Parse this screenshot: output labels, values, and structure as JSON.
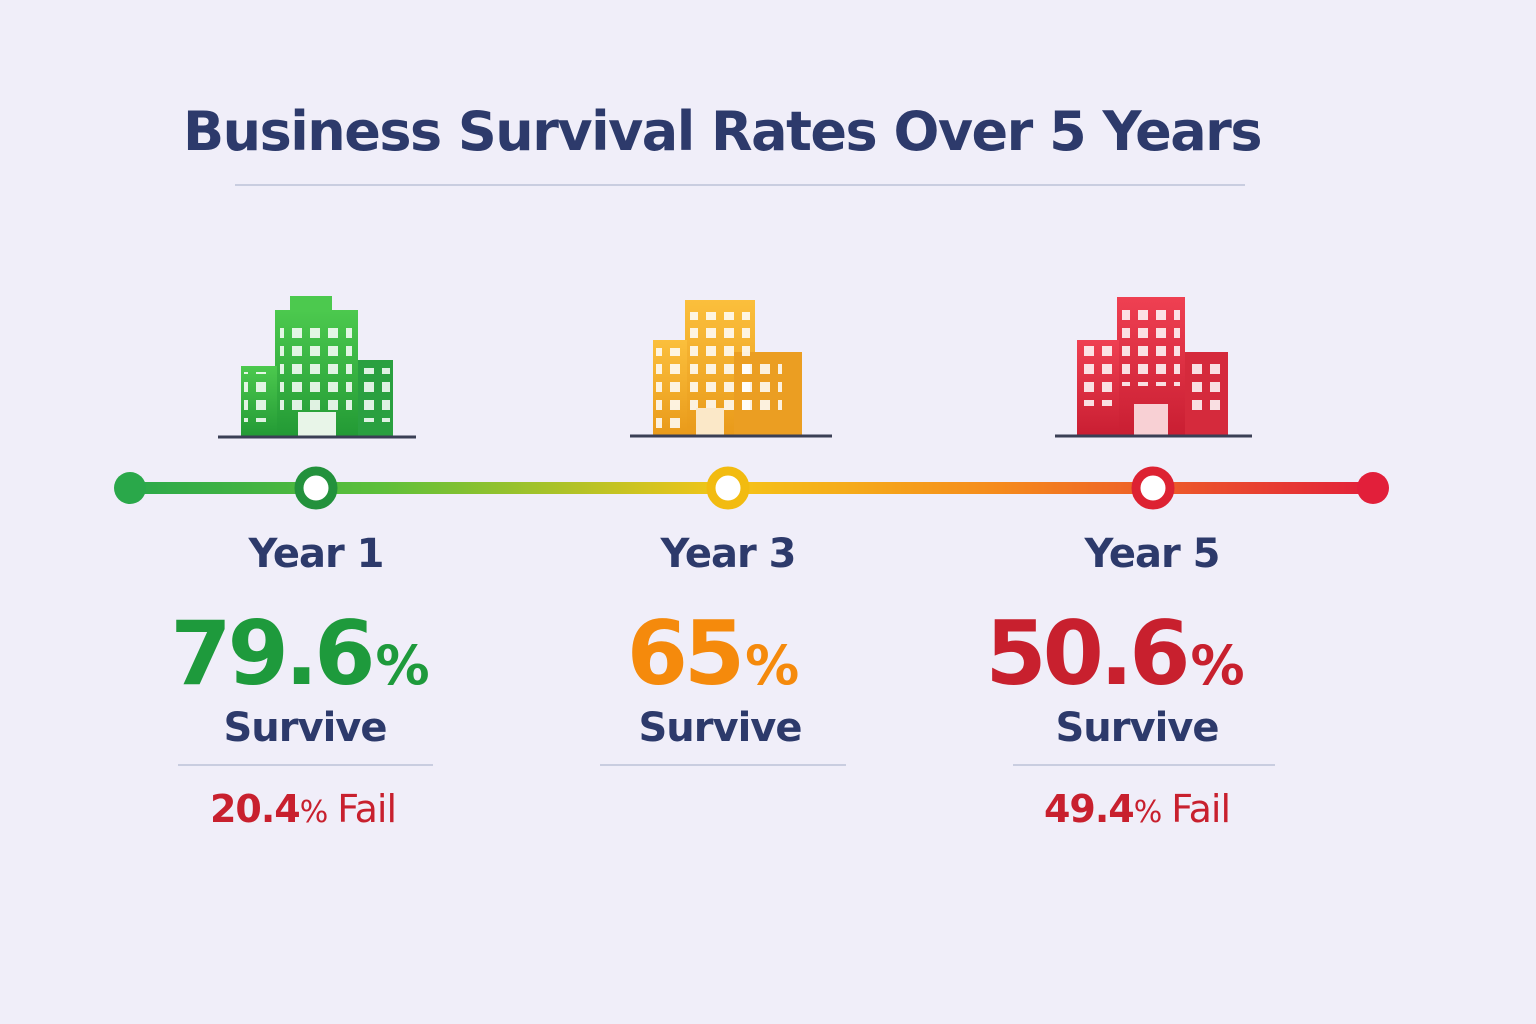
{
  "header": {
    "title": "Business Survival Rates Over 5 Years"
  },
  "milestones": [
    {
      "year": "Year 1",
      "survive_value": "79.6",
      "survive_unit": "%",
      "survive_label": "Survive",
      "fail_value": "20.4",
      "fail_unit": "%",
      "fail_label": "Fail"
    },
    {
      "year": "Year 3",
      "survive_value": "65",
      "survive_unit": "%",
      "survive_label": "Survive"
    },
    {
      "year": "Year 5",
      "survive_value": "50.6",
      "survive_unit": "%",
      "survive_label": "Survive",
      "fail_value": "49.4",
      "fail_unit": "%",
      "fail_label": "Fail"
    }
  ]
}
